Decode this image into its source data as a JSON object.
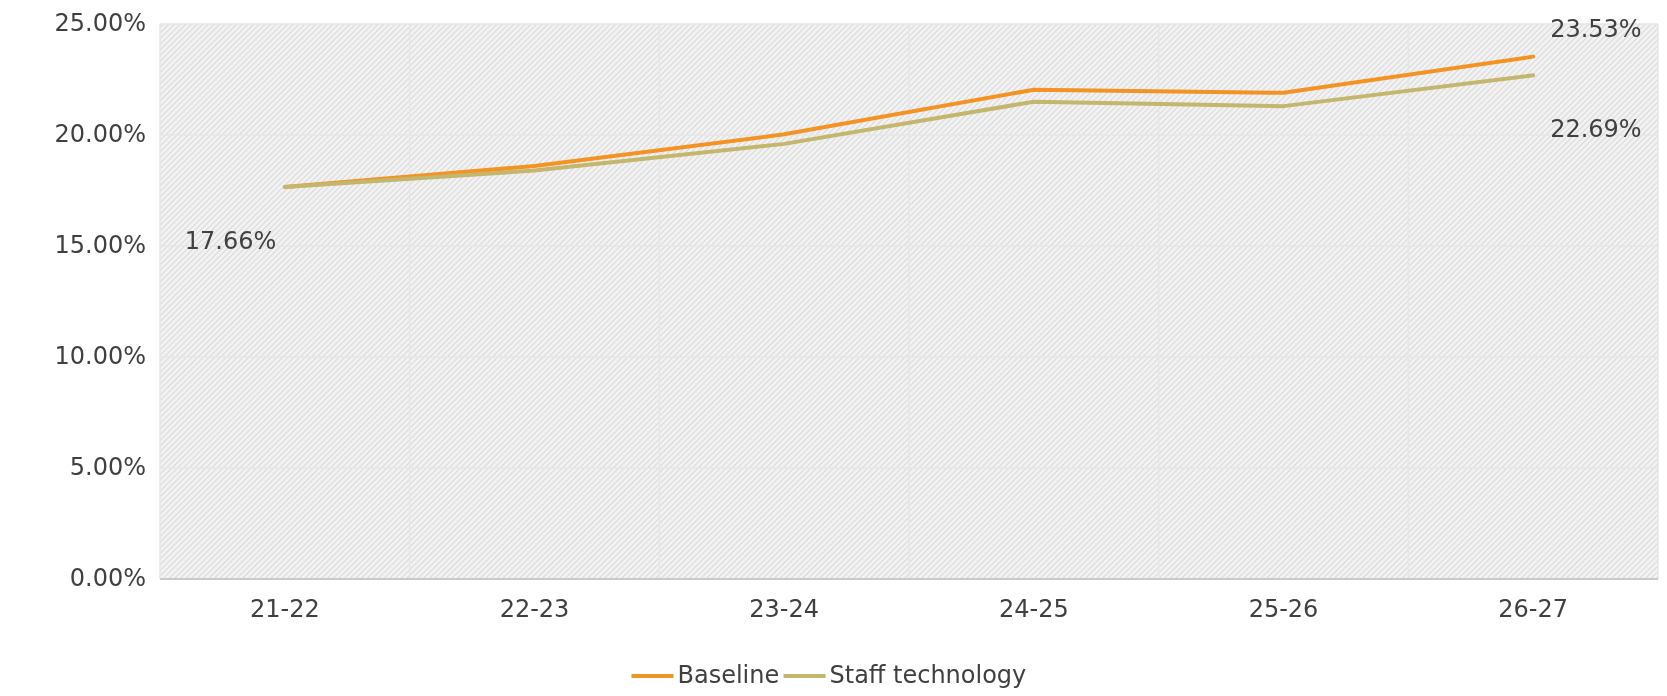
{
  "chart_data": {
    "type": "line",
    "categories": [
      "21-22",
      "22-23",
      "23-24",
      "24-25",
      "25-26",
      "26-27"
    ],
    "series": [
      {
        "name": "Baseline",
        "color": "#f39324",
        "values": [
          17.66,
          18.6,
          20.03,
          22.04,
          21.9,
          23.53
        ],
        "value_labels": [
          null,
          null,
          null,
          null,
          null,
          "23.53%"
        ]
      },
      {
        "name": "Staff technology",
        "color": "#c4b66d",
        "values": [
          17.66,
          18.4,
          19.6,
          21.5,
          21.3,
          22.69
        ],
        "value_labels": [
          "17.66%",
          null,
          null,
          null,
          null,
          "22.69%"
        ]
      }
    ],
    "ylim": [
      0,
      25
    ],
    "yticks": [
      {
        "value": 0,
        "label": "0.00%"
      },
      {
        "value": 5,
        "label": "5.00%"
      },
      {
        "value": 10,
        "label": "10.00%"
      },
      {
        "value": 15,
        "label": "15.00%"
      },
      {
        "value": 20,
        "label": "20.00%"
      },
      {
        "value": 25,
        "label": "25.00%"
      }
    ],
    "grid": true,
    "legend": "bottom",
    "marker": "none",
    "line_style": "solid"
  }
}
